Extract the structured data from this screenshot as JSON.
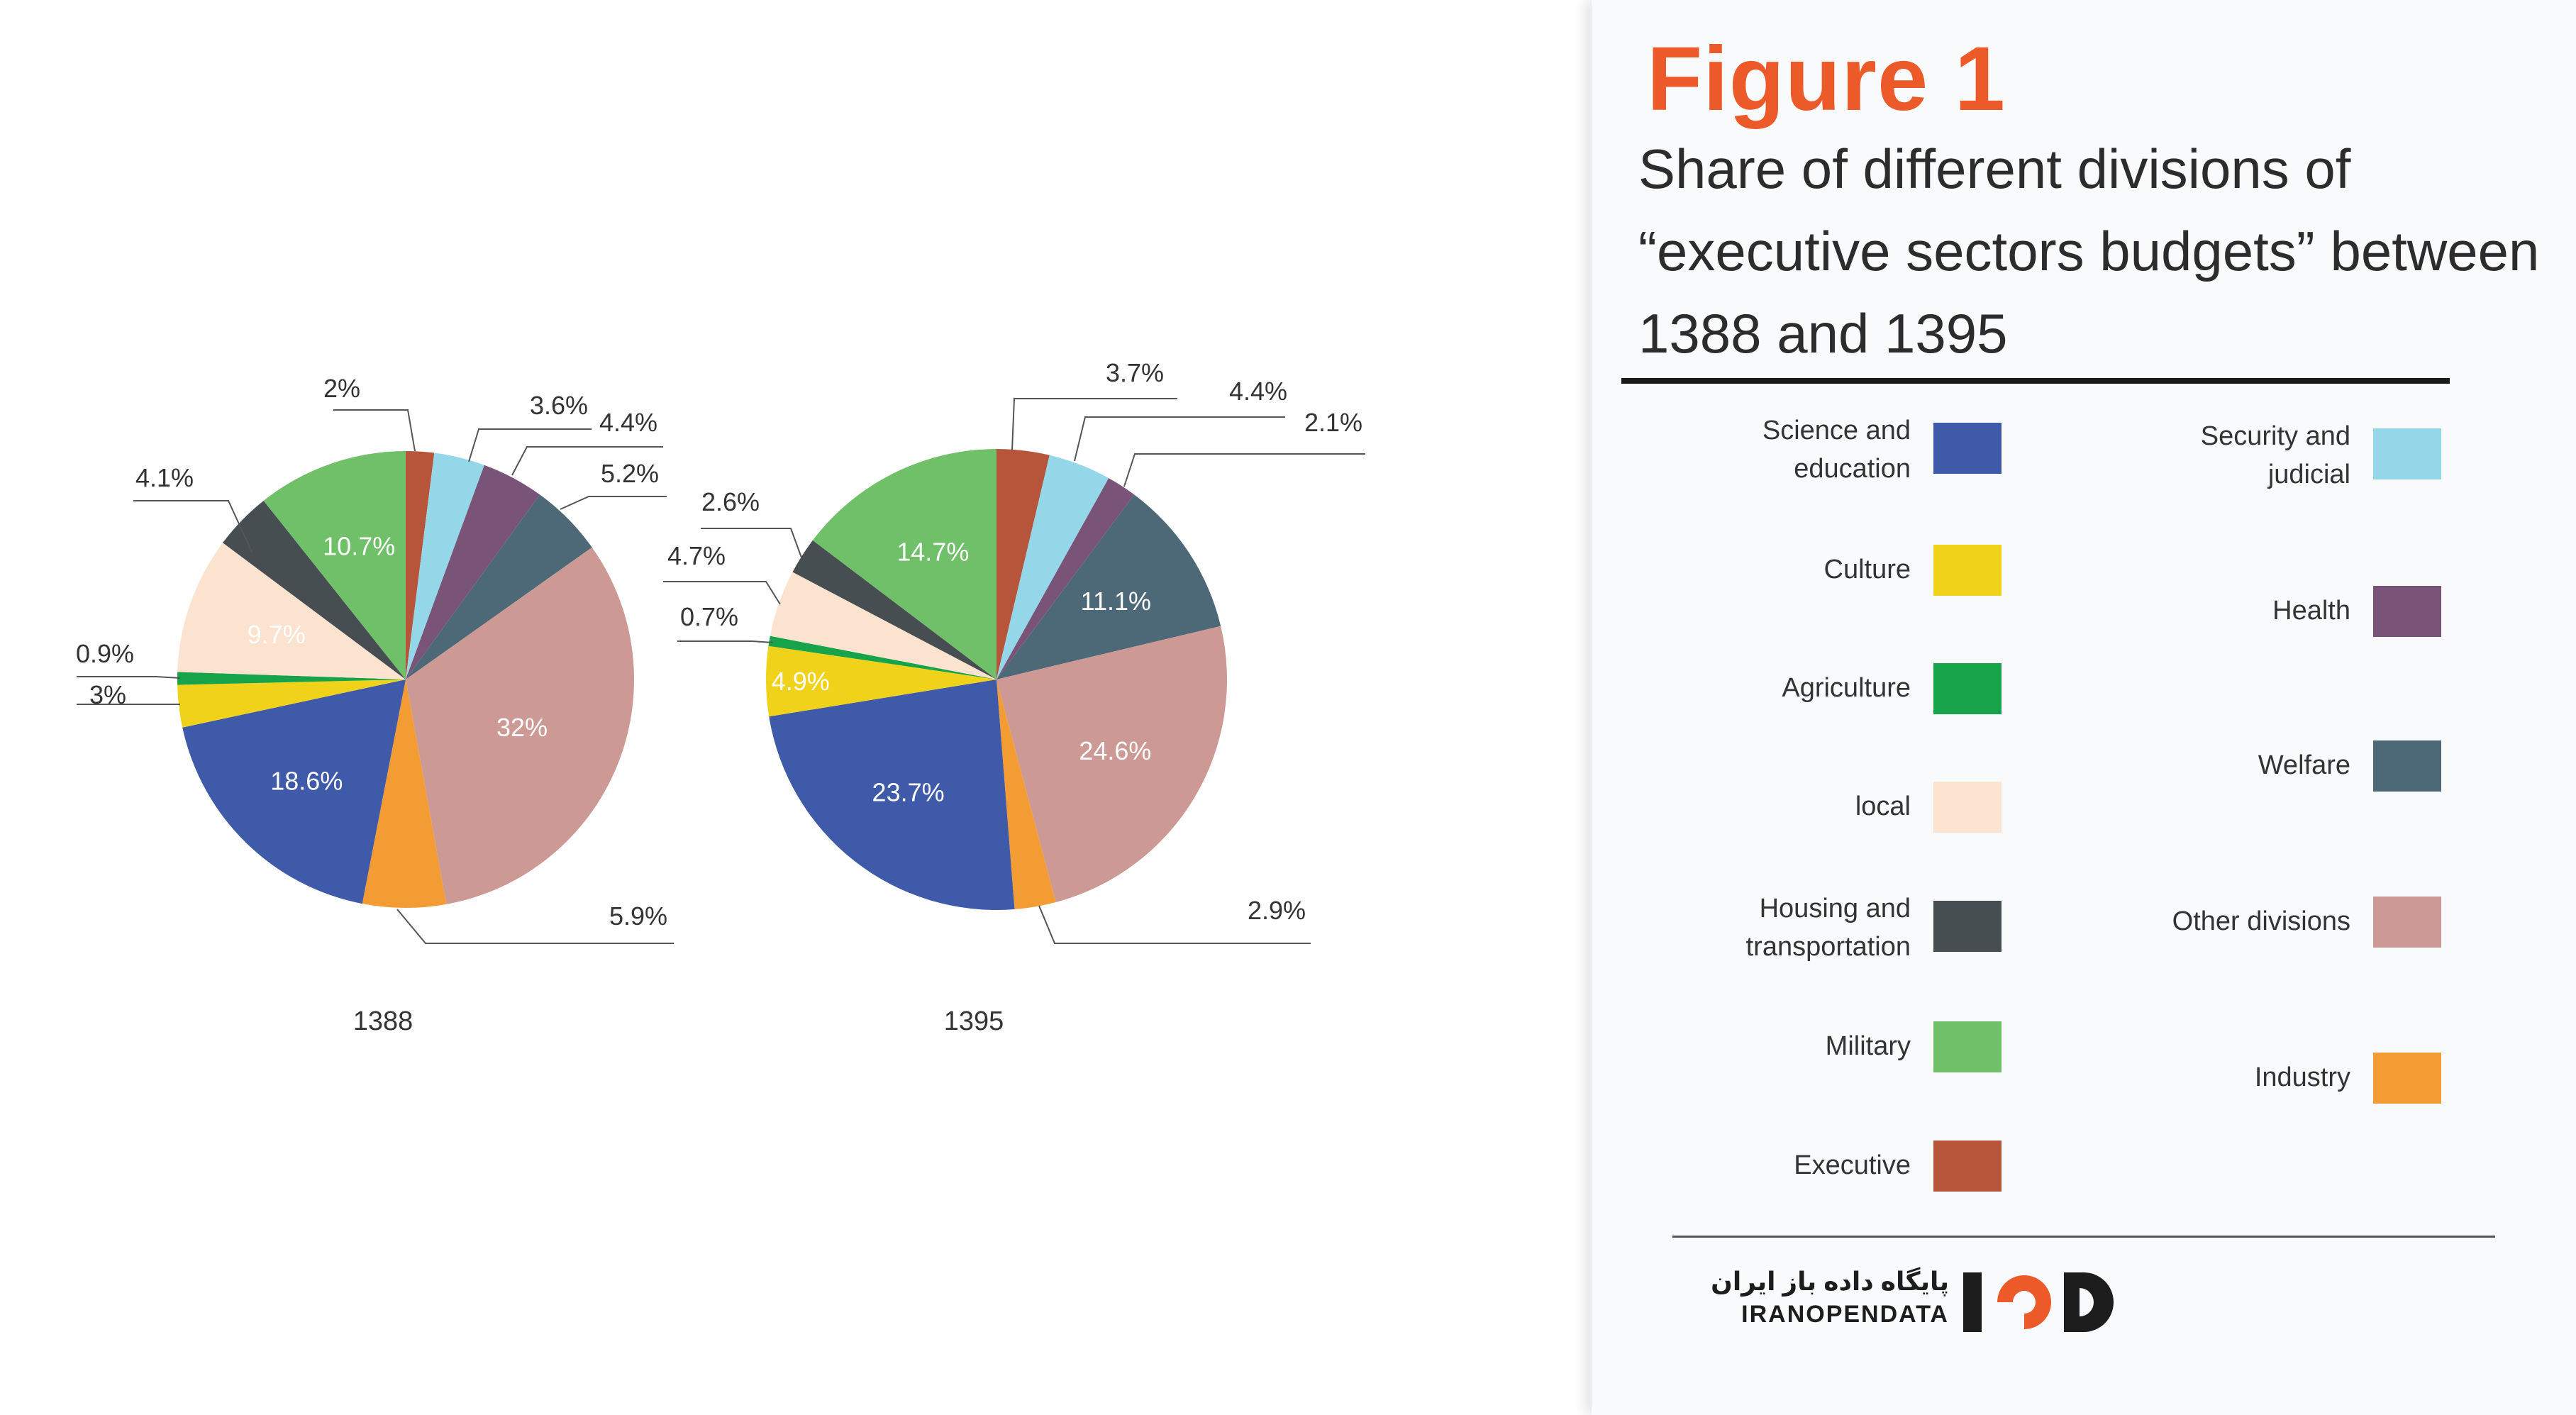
{
  "figure": {
    "title": "Figure 1",
    "subtitle": "Share of different divisions of\n“executive sectors budgets” between\n1388 and 1395"
  },
  "chart_data": [
    {
      "type": "pie",
      "title": "1388",
      "slices": [
        {
          "label": "Executive",
          "value": 2,
          "display": "2%"
        },
        {
          "label": "Security and judicial",
          "value": 3.6,
          "display": "3.6%"
        },
        {
          "label": "Health",
          "value": 4.4,
          "display": "4.4%"
        },
        {
          "label": "Welfare",
          "value": 5.2,
          "display": "5.2%"
        },
        {
          "label": "Other divisions",
          "value": 32,
          "display": "32%"
        },
        {
          "label": "Industry",
          "value": 5.9,
          "display": "5.9%"
        },
        {
          "label": "Science and education",
          "value": 18.6,
          "display": "18.6%"
        },
        {
          "label": "Culture",
          "value": 3,
          "display": "3%"
        },
        {
          "label": "Agriculture",
          "value": 0.9,
          "display": "0.9%"
        },
        {
          "label": "local",
          "value": 9.7,
          "display": "9.7%"
        },
        {
          "label": "Housing and transportation",
          "value": 4.1,
          "display": "4.1%"
        },
        {
          "label": "Military",
          "value": 10.7,
          "display": "10.7%"
        }
      ]
    },
    {
      "type": "pie",
      "title": "1395",
      "slices": [
        {
          "label": "Executive",
          "value": 3.7,
          "display": "3.7%"
        },
        {
          "label": "Security and judicial",
          "value": 4.4,
          "display": "4.4%"
        },
        {
          "label": "Health",
          "value": 2.1,
          "display": "2.1%"
        },
        {
          "label": "Welfare",
          "value": 11.1,
          "display": "11.1%"
        },
        {
          "label": "Other divisions",
          "value": 24.6,
          "display": "24.6%"
        },
        {
          "label": "Industry",
          "value": 2.9,
          "display": "2.9%"
        },
        {
          "label": "Science and education",
          "value": 23.7,
          "display": "23.7%"
        },
        {
          "label": "Culture",
          "value": 4.9,
          "display": "4.9%"
        },
        {
          "label": "Agriculture",
          "value": 0.7,
          "display": "0.7%"
        },
        {
          "label": "local",
          "value": 4.7,
          "display": "4.7%"
        },
        {
          "label": "Housing and transportation",
          "value": 2.6,
          "display": "2.6%"
        },
        {
          "label": "Military",
          "value": 14.7,
          "display": "14.7%"
        }
      ]
    }
  ],
  "legend": {
    "left": [
      {
        "label": "Science and\neducation",
        "color": "#3f5aa8"
      },
      {
        "label": "Culture",
        "color": "#f0d21a"
      },
      {
        "label": "Agriculture",
        "color": "#17a34a"
      },
      {
        "label": "local",
        "color": "#fbe3cf"
      },
      {
        "label": "Housing and\ntransportation",
        "color": "#474e52"
      },
      {
        "label": "Military",
        "color": "#70c06a"
      },
      {
        "label": "Executive",
        "color": "#b6553a"
      }
    ],
    "right": [
      {
        "label": "Security and\njudicial",
        "color": "#93d7e9"
      },
      {
        "label": "Health",
        "color": "#7a5478"
      },
      {
        "label": "Welfare",
        "color": "#4d6978"
      },
      {
        "label": "Other divisions",
        "color": "#cc9994"
      },
      {
        "label": "Industry",
        "color": "#f39c34"
      }
    ]
  },
  "logo": {
    "fa": "پایگاه داده باز ایران",
    "en": "IRANOPENDATA",
    "mark": "IOD"
  }
}
